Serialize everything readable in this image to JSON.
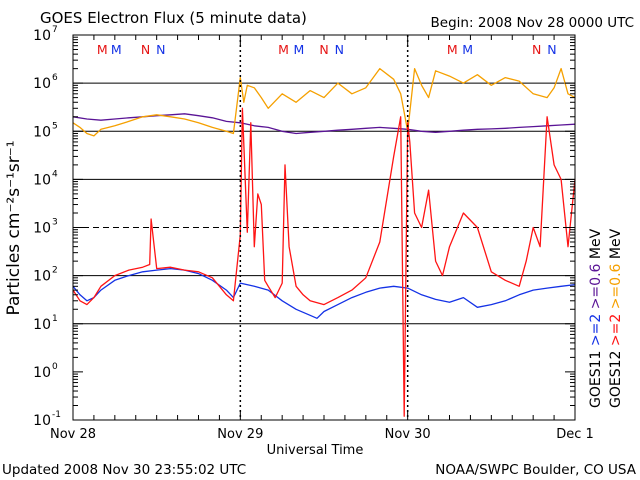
{
  "header": {
    "title": "GOES Electron Flux (5 minute data)",
    "begin": "Begin: 2008 Nov 28 0000 UTC"
  },
  "footer": {
    "updated": "Updated 2008 Nov 30 23:55:02 UTC",
    "credit": "NOAA/SWPC Boulder, CO USA"
  },
  "colors": {
    "goes11_high": "#1432e6",
    "goes11_low": "#5a1496",
    "goes12_high": "#ff1414",
    "goes12_low": "#f5a000"
  },
  "chart_data": {
    "type": "line",
    "title": "GOES Electron Flux (5 minute data)",
    "xlabel": "Universal Time",
    "ylabel": "Particles cm⁻²s⁻¹sr⁻¹",
    "yscale": "log",
    "ylim": [
      0.1,
      10000000
    ],
    "xlim": [
      0,
      72
    ],
    "x_unit": "hours since 2008 Nov 28 0000 UTC",
    "x_ticks": [
      {
        "x": 0,
        "label": "Nov 28"
      },
      {
        "x": 24,
        "label": "Nov 29"
      },
      {
        "x": 48,
        "label": "Nov 30"
      },
      {
        "x": 72,
        "label": "Dec 1"
      }
    ],
    "y_ticks": [
      {
        "value": 0.1,
        "base": "10",
        "exp": "-1"
      },
      {
        "value": 1,
        "base": "10",
        "exp": "0"
      },
      {
        "value": 10,
        "base": "10",
        "exp": "1"
      },
      {
        "value": 100,
        "base": "10",
        "exp": "2"
      },
      {
        "value": 1000,
        "base": "10",
        "exp": "3"
      },
      {
        "value": 10000,
        "base": "10",
        "exp": "4"
      },
      {
        "value": 100000,
        "base": "10",
        "exp": "5"
      },
      {
        "value": 1000000,
        "base": "10",
        "exp": "6"
      },
      {
        "value": 10000000,
        "base": "10",
        "exp": "7"
      }
    ],
    "gridlines": [
      10,
      100,
      1000,
      10000,
      100000,
      1000000
    ],
    "dashed_gridlines": [
      1000
    ],
    "legend": [
      {
        "label": "GOES11",
        "col": 0
      },
      {
        "label": ">=2",
        "col": 0,
        "color": "#1432e6"
      },
      {
        "label": ">=0.6",
        "col": 0,
        "color": "#5a1496"
      },
      {
        "label": "MeV",
        "col": 0
      },
      {
        "label": "GOES12",
        "col": 1
      },
      {
        "label": ">=2",
        "col": 1,
        "color": "#ff1414"
      },
      {
        "label": ">=0.6",
        "col": 1,
        "color": "#f5a000"
      },
      {
        "label": "MeV",
        "col": 1
      }
    ],
    "markers": [
      {
        "x": 4.2,
        "label": "M",
        "color": "#e61414"
      },
      {
        "x": 6.2,
        "label": "M",
        "color": "#1432e6"
      },
      {
        "x": 10.4,
        "label": "N",
        "color": "#e61414"
      },
      {
        "x": 12.6,
        "label": "N",
        "color": "#1432e6"
      },
      {
        "x": 30.2,
        "label": "M",
        "color": "#e61414"
      },
      {
        "x": 32.4,
        "label": "M",
        "color": "#1432e6"
      },
      {
        "x": 36.0,
        "label": "N",
        "color": "#e61414"
      },
      {
        "x": 38.2,
        "label": "N",
        "color": "#1432e6"
      },
      {
        "x": 54.4,
        "label": "M",
        "color": "#e61414"
      },
      {
        "x": 56.6,
        "label": "M",
        "color": "#1432e6"
      },
      {
        "x": 66.5,
        "label": "N",
        "color": "#e61414"
      },
      {
        "x": 68.7,
        "label": "N",
        "color": "#1432e6"
      }
    ],
    "series": [
      {
        "name": "GOES11 >=0.6 MeV",
        "color": "#5a1496",
        "x": [
          0,
          2,
          4,
          6,
          8,
          10,
          12,
          14,
          16,
          18,
          20,
          22,
          24,
          26,
          28,
          30,
          32,
          34,
          36,
          38,
          40,
          42,
          44,
          46,
          48,
          50,
          52,
          54,
          56,
          58,
          60,
          62,
          64,
          66,
          68,
          70,
          72
        ],
        "y": [
          200000,
          180000,
          170000,
          180000,
          190000,
          200000,
          210000,
          220000,
          230000,
          210000,
          190000,
          160000,
          150000,
          130000,
          120000,
          100000,
          90000,
          95000,
          100000,
          105000,
          110000,
          115000,
          120000,
          115000,
          110000,
          100000,
          95000,
          100000,
          105000,
          110000,
          112000,
          115000,
          120000,
          125000,
          130000,
          135000,
          140000
        ]
      },
      {
        "name": "GOES12 >=0.6 MeV",
        "color": "#f5a000",
        "x": [
          0,
          1,
          2,
          3,
          4,
          6,
          8,
          10,
          12,
          14,
          16,
          18,
          20,
          22,
          23,
          24,
          24.5,
          25,
          26,
          27,
          28,
          30,
          32,
          34,
          36,
          38,
          40,
          42,
          44,
          46,
          47,
          48,
          49,
          50,
          51,
          52,
          54,
          56,
          58,
          60,
          62,
          64,
          66,
          68,
          69,
          70,
          71,
          72
        ],
        "y": [
          150000,
          120000,
          90000,
          80000,
          110000,
          130000,
          160000,
          200000,
          220000,
          200000,
          180000,
          150000,
          120000,
          100000,
          90000,
          1300000,
          400000,
          900000,
          800000,
          500000,
          300000,
          600000,
          400000,
          700000,
          500000,
          1000000,
          600000,
          800000,
          2000000,
          1200000,
          600000,
          100000,
          2000000,
          900000,
          500000,
          1800000,
          1400000,
          1000000,
          1500000,
          900000,
          1300000,
          1100000,
          600000,
          500000,
          800000,
          2000000,
          600000,
          500000
        ]
      },
      {
        "name": "GOES11 >=2 MeV",
        "color": "#1432e6",
        "x": [
          0,
          1,
          2,
          3,
          4,
          6,
          8,
          10,
          12,
          14,
          16,
          18,
          20,
          22,
          23,
          24,
          26,
          28,
          30,
          32,
          34,
          35,
          36,
          38,
          40,
          42,
          44,
          46,
          48,
          50,
          52,
          54,
          56,
          58,
          60,
          62,
          64,
          66,
          68,
          70,
          72
        ],
        "y": [
          60,
          40,
          30,
          35,
          50,
          80,
          100,
          120,
          130,
          140,
          130,
          110,
          80,
          50,
          35,
          70,
          60,
          50,
          30,
          20,
          15,
          13,
          18,
          25,
          35,
          45,
          55,
          60,
          55,
          40,
          32,
          28,
          35,
          22,
          25,
          30,
          40,
          50,
          55,
          60,
          65
        ]
      },
      {
        "name": "GOES12 >=2 MeV",
        "color": "#ff1414",
        "x": [
          0,
          1,
          2,
          3,
          4,
          6,
          8,
          10,
          11,
          11.2,
          12,
          14,
          16,
          18,
          20,
          22,
          23,
          24,
          24.3,
          25,
          25.5,
          26,
          26.5,
          27,
          27.5,
          28,
          29,
          30,
          30.4,
          31,
          32,
          33,
          34,
          36,
          38,
          40,
          42,
          44,
          46,
          47,
          47.5,
          48,
          48.3,
          49,
          50,
          51,
          52,
          53,
          54,
          56,
          58,
          60,
          62,
          64,
          65,
          66,
          67,
          68,
          69,
          70,
          71,
          72
        ],
        "y": [
          50,
          30,
          25,
          35,
          60,
          100,
          130,
          150,
          170,
          1500,
          140,
          150,
          130,
          120,
          90,
          40,
          30,
          700,
          300000,
          800,
          150000,
          400,
          5000,
          3000,
          80,
          60,
          35,
          70,
          20000,
          400,
          60,
          40,
          30,
          25,
          35,
          50,
          90,
          500,
          30000,
          200000,
          0.12,
          150000,
          60000,
          2000,
          1000,
          6000,
          200,
          100,
          400,
          2000,
          1000,
          120,
          80,
          60,
          200,
          1000,
          400,
          200000,
          20000,
          10000,
          400,
          10000
        ]
      }
    ]
  }
}
